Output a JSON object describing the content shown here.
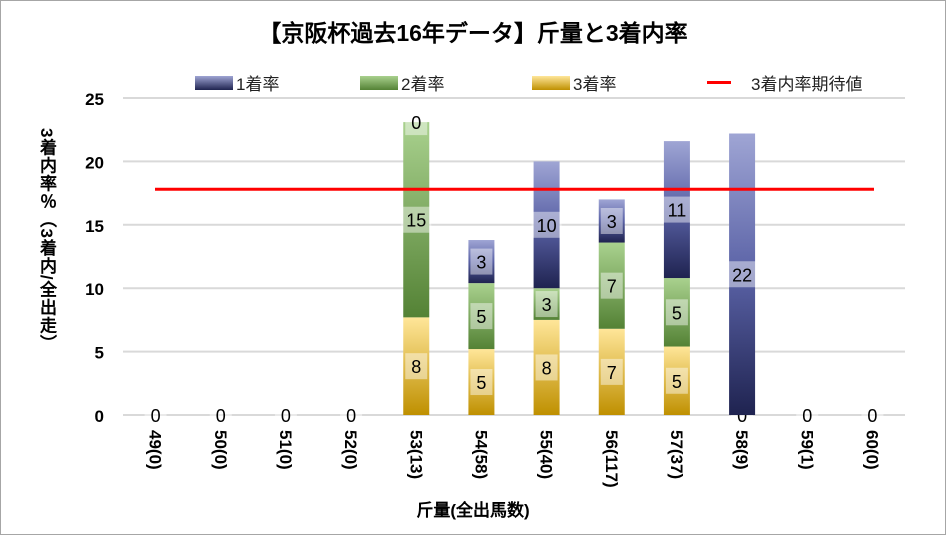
{
  "chart_data": {
    "type": "bar",
    "stacked": true,
    "title": "【京阪杯過去16年データ】斤量と3着内率",
    "xlabel": "斤量(全出馬数)",
    "ylabel": "3着内率％（3着内/全出走）",
    "ylim": [
      0,
      25
    ],
    "yticks": [
      0,
      5,
      10,
      15,
      20,
      25
    ],
    "grid": true,
    "legend_position": "top",
    "categories": [
      "49(0)",
      "50(0)",
      "51(0)",
      "52(0)",
      "53(13)",
      "54(58)",
      "55(40)",
      "56(117)",
      "57(37)",
      "58(9)",
      "59(1)",
      "60(0)"
    ],
    "series": [
      {
        "name": "3着率",
        "values": [
          0,
          0,
          0,
          0,
          7.7,
          5.2,
          7.5,
          6.8,
          5.4,
          0,
          0,
          0
        ],
        "labels": [
          "0",
          "0",
          "0",
          "0",
          "8",
          "5",
          "8",
          "7",
          "5",
          "0",
          "0",
          "0"
        ],
        "color_top": "#ffe699",
        "color_bottom": "#bf9000"
      },
      {
        "name": "2着率",
        "values": [
          0,
          0,
          0,
          0,
          15.4,
          5.2,
          2.5,
          6.8,
          5.4,
          0,
          0,
          0
        ],
        "labels": [
          "",
          "",
          "",
          "",
          "15",
          "5",
          "3",
          "7",
          "5",
          "",
          "",
          ""
        ],
        "color_top": "#a9d18e",
        "color_bottom": "#548235"
      },
      {
        "name": "1着率",
        "values": [
          0,
          0,
          0,
          0,
          0,
          3.4,
          10.0,
          3.4,
          10.8,
          22.2,
          0,
          0
        ],
        "labels": [
          "",
          "",
          "",
          "",
          "0",
          "3",
          "10",
          "3",
          "11",
          "22",
          "",
          ""
        ],
        "color_top": "#9fa5d4",
        "color_bottom": "#1f2350"
      }
    ],
    "line": {
      "name": "3着内率期待値",
      "value": 17.8,
      "color": "#ff0000"
    }
  }
}
